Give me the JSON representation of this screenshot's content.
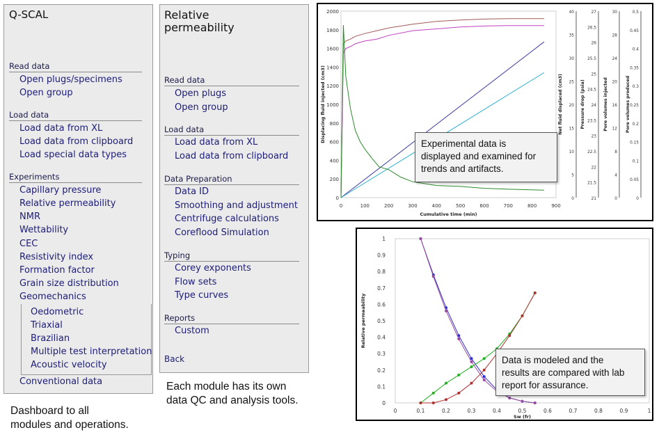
{
  "qscal": {
    "title": "Q-SCAL",
    "sections": [
      {
        "header": "Read data",
        "items": [
          "Open plugs/specimens",
          "Open group"
        ]
      },
      {
        "header": "Load data",
        "items": [
          "Load data from XL",
          "Load data from clipboard",
          "Load special data types"
        ]
      },
      {
        "header": "Experiments",
        "items": [
          "Capillary pressure",
          "Relative permeability",
          "NMR",
          "Wettability",
          "CEC",
          "Resistivity index",
          "Formation factor",
          "Grain size distribution",
          "Geomechanics"
        ],
        "subitems": [
          "Oedometric",
          "Triaxial",
          "Brazilian",
          "Multiple test interpretation",
          "Acoustic velocity"
        ],
        "trailing": "Conventional data"
      }
    ]
  },
  "relperm": {
    "title_line1": "Relative",
    "title_line2": "permeability",
    "sections": [
      {
        "header": "Read data",
        "items": [
          "Open plugs",
          "Open group"
        ]
      },
      {
        "header": "Load data",
        "items": [
          "Load data from XL",
          "Load data from clipboard"
        ]
      },
      {
        "header": "Data Preparation",
        "items": [
          "Data ID",
          "Smoothing and adjustment",
          "Centrifuge calculations",
          "Coreflood Simulation"
        ]
      },
      {
        "header": "Typing",
        "items": [
          "Corey exponents",
          "Flow sets",
          "Type curves"
        ]
      },
      {
        "header": "Reports",
        "items": [
          "Custom"
        ]
      }
    ],
    "back": "Back"
  },
  "captions": {
    "dashboard": "Dashboard to all\nmodules and operations.",
    "module": "Each module has its own\ndata QC and analysis tools."
  },
  "callouts": {
    "experimental": "Experimental data is\ndisplayed and examined for\ntrends and artifacts.",
    "modeled": "Data is modeled and the\nresults are compared with lab\nreport for assurance."
  },
  "chart_data": [
    {
      "type": "line",
      "xlabel": "Cumulative time (min)",
      "ylabel": "Displacing fluid injected (cm3)",
      "x_ticks": [
        "0",
        "100",
        "200",
        "300",
        "400",
        "500",
        "600",
        "700",
        "800",
        "900"
      ],
      "y_ticks": [
        "0",
        "200",
        "400",
        "600",
        "800",
        "1000",
        "1200",
        "1400",
        "1600",
        "1800",
        "2000"
      ],
      "xlim": [
        0,
        900
      ],
      "ylim": [
        0,
        2000
      ],
      "right_axes": [
        {
          "label": "Net fluid displaced (cm3)",
          "ticks": [
            "0",
            "5",
            "10",
            "15",
            "20",
            "25",
            "30",
            "35",
            "40"
          ]
        },
        {
          "label": "Pressure drop (psia)",
          "ticks": [
            "21",
            "21.5",
            "22",
            "22.5",
            "23",
            "23.5",
            "24",
            "24.5",
            "25",
            "25.5",
            "26",
            "26.5",
            "27"
          ]
        },
        {
          "label": "Pore volumes injected",
          "ticks": [
            "0",
            "4",
            "8",
            "12",
            "16",
            "20",
            "24",
            "28",
            "30"
          ]
        },
        {
          "label": "Pore volumes produced",
          "ticks": [
            "0",
            "0.05",
            "0.1",
            "0.15",
            "0.2",
            "0.25",
            "0.3",
            "0.35",
            "0.4",
            "0.45",
            "0.5"
          ]
        }
      ],
      "series": [
        {
          "color": "#a05a5a",
          "x": [
            0,
            10,
            20,
            40,
            60,
            100,
            150,
            200,
            300,
            400,
            500,
            600,
            700,
            850
          ],
          "y": [
            0,
            1650,
            1680,
            1700,
            1730,
            1760,
            1790,
            1820,
            1860,
            1890,
            1905,
            1915,
            1920,
            1920
          ]
        },
        {
          "color": "#c040c0",
          "x": [
            0,
            10,
            20,
            40,
            60,
            100,
            150,
            200,
            300,
            400,
            500,
            600,
            700,
            850
          ],
          "y": [
            0,
            1550,
            1600,
            1620,
            1650,
            1680,
            1700,
            1740,
            1790,
            1810,
            1830,
            1840,
            1845,
            1845
          ]
        },
        {
          "color": "#3a3aa0",
          "x": [
            0,
            850
          ],
          "y": [
            0,
            1670
          ]
        },
        {
          "color": "#30b0d0",
          "x": [
            0,
            850
          ],
          "y": [
            0,
            1340
          ]
        },
        {
          "color": "#2a8a2a",
          "x": [
            0,
            10,
            20,
            40,
            60,
            80,
            100,
            130,
            160,
            200,
            250,
            300,
            400,
            500,
            600,
            700,
            850
          ],
          "y": [
            0,
            1850,
            1300,
            950,
            720,
            600,
            520,
            420,
            330,
            300,
            220,
            170,
            130,
            120,
            100,
            90,
            80
          ]
        }
      ]
    },
    {
      "type": "line",
      "xlabel": "Sw (fr)",
      "ylabel": "Relative permeability",
      "x_ticks": [
        "0",
        "0.1",
        "0.2",
        "0.3",
        "0.4",
        "0.5",
        "0.6",
        "0.7",
        "0.8",
        "0.9",
        "1"
      ],
      "y_ticks": [
        "0",
        "0.1",
        "0.2",
        "0.3",
        "0.4",
        "0.5",
        "0.6",
        "0.7",
        "0.8",
        "0.9",
        "1"
      ],
      "xlim": [
        0,
        1
      ],
      "ylim": [
        0,
        1
      ],
      "series": [
        {
          "color": "#3030d0",
          "x": [
            0.1,
            0.15,
            0.2,
            0.25,
            0.3,
            0.35,
            0.4,
            0.45,
            0.5,
            0.55
          ],
          "y": [
            1.0,
            0.78,
            0.58,
            0.41,
            0.27,
            0.16,
            0.08,
            0.03,
            0.01,
            0.0
          ]
        },
        {
          "color": "#9a4aa0",
          "x": [
            0.1,
            0.15,
            0.2,
            0.25,
            0.3,
            0.35,
            0.4,
            0.45,
            0.5,
            0.55
          ],
          "y": [
            1.0,
            0.77,
            0.56,
            0.39,
            0.25,
            0.14,
            0.07,
            0.03,
            0.01,
            0.0
          ]
        },
        {
          "color": "#20b020",
          "x": [
            0.1,
            0.15,
            0.2,
            0.25,
            0.3,
            0.35,
            0.4,
            0.45,
            0.5,
            0.55
          ],
          "y": [
            0.0,
            0.06,
            0.12,
            0.17,
            0.22,
            0.27,
            0.33,
            0.42,
            0.53,
            0.67
          ]
        },
        {
          "color": "#b03030",
          "x": [
            0.1,
            0.15,
            0.2,
            0.25,
            0.3,
            0.35,
            0.4,
            0.45,
            0.5,
            0.55
          ],
          "y": [
            0.0,
            0.0,
            0.02,
            0.06,
            0.12,
            0.2,
            0.3,
            0.41,
            0.53,
            0.67
          ]
        }
      ]
    }
  ]
}
